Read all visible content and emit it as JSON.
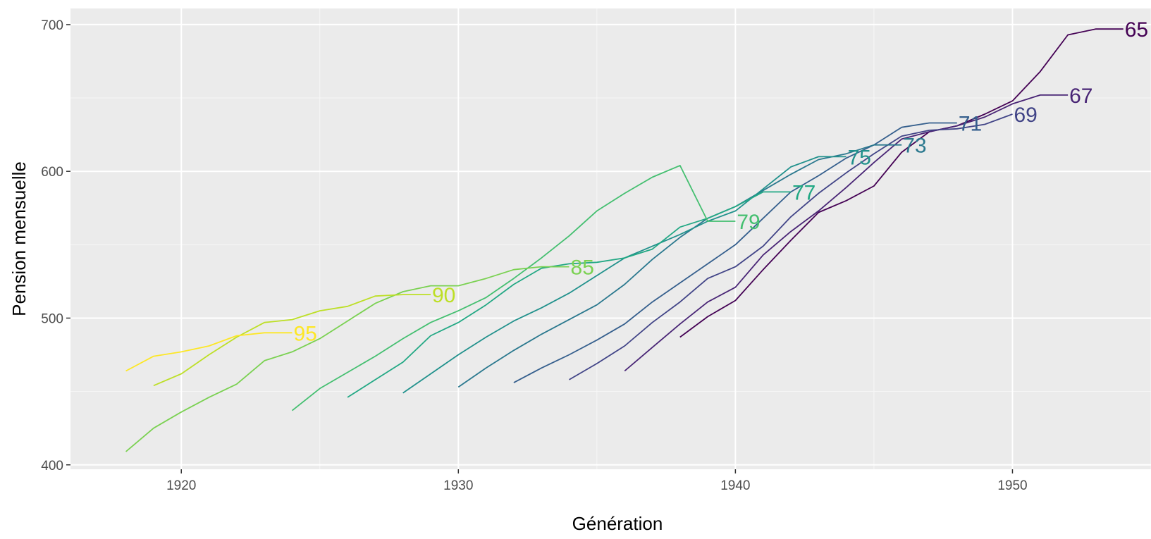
{
  "chart_data": {
    "type": "line",
    "title": "",
    "xlabel": "Génération",
    "ylabel": "Pension mensuelle",
    "xlim": [
      1916,
      1955
    ],
    "ylim": [
      397,
      711
    ],
    "x_ticks": [
      1920,
      1930,
      1940,
      1950
    ],
    "y_ticks": [
      400,
      500,
      600,
      700
    ],
    "grid": true,
    "legend": "none",
    "series": [
      {
        "name": "65",
        "color": "#440154",
        "x": [
          1938,
          1939,
          1940,
          1941,
          1942,
          1943,
          1944,
          1945,
          1946,
          1947,
          1948,
          1949,
          1950,
          1951,
          1952,
          1953,
          1954
        ],
        "y": [
          487,
          501,
          512,
          533,
          553,
          572,
          580,
          590,
          613,
          627,
          631,
          639,
          648,
          668,
          693,
          697,
          697
        ]
      },
      {
        "name": "67",
        "color": "#482475",
        "x": [
          1936,
          1937,
          1938,
          1939,
          1940,
          1941,
          1942,
          1943,
          1944,
          1945,
          1946,
          1947,
          1948,
          1949,
          1950,
          1951,
          1952
        ],
        "y": [
          464,
          480,
          496,
          511,
          521,
          543,
          559,
          573,
          589,
          606,
          622,
          627,
          631,
          637,
          646,
          652,
          652
        ]
      },
      {
        "name": "69",
        "color": "#414487",
        "x": [
          1934,
          1935,
          1936,
          1937,
          1938,
          1939,
          1940,
          1941,
          1942,
          1943,
          1944,
          1945,
          1946,
          1947,
          1948,
          1949,
          1950
        ],
        "y": [
          458,
          469,
          481,
          497,
          511,
          527,
          535,
          549,
          569,
          585,
          599,
          612,
          624,
          628,
          629,
          632,
          639
        ]
      },
      {
        "name": "71",
        "color": "#355f8d",
        "x": [
          1932,
          1933,
          1934,
          1935,
          1936,
          1937,
          1938,
          1939,
          1940,
          1941,
          1942,
          1943,
          1944,
          1945,
          1946,
          1947,
          1948
        ],
        "y": [
          456,
          466,
          475,
          485,
          496,
          511,
          524,
          537,
          550,
          568,
          586,
          597,
          609,
          618,
          630,
          633,
          633
        ]
      },
      {
        "name": "73",
        "color": "#2a788e",
        "x": [
          1930,
          1931,
          1932,
          1933,
          1934,
          1935,
          1936,
          1937,
          1938,
          1939,
          1940,
          1941,
          1942,
          1943,
          1944,
          1945,
          1946
        ],
        "y": [
          453,
          466,
          478,
          489,
          499,
          509,
          523,
          540,
          555,
          568,
          576,
          587,
          598,
          608,
          612,
          618,
          618
        ]
      },
      {
        "name": "75",
        "color": "#21918c",
        "x": [
          1928,
          1929,
          1930,
          1931,
          1932,
          1933,
          1934,
          1935,
          1936,
          1937,
          1938,
          1939,
          1940,
          1941,
          1942,
          1943,
          1944
        ],
        "y": [
          449,
          462,
          475,
          487,
          498,
          507,
          517,
          529,
          541,
          549,
          557,
          566,
          573,
          588,
          603,
          610,
          610
        ]
      },
      {
        "name": "77",
        "color": "#22a884",
        "x": [
          1926,
          1927,
          1928,
          1929,
          1930,
          1931,
          1932,
          1933,
          1934,
          1935,
          1936,
          1937,
          1938,
          1939,
          1940,
          1941,
          1942
        ],
        "y": [
          446,
          458,
          470,
          488,
          497,
          509,
          523,
          534,
          537,
          538,
          541,
          547,
          562,
          568,
          576,
          586,
          586
        ]
      },
      {
        "name": "79",
        "color": "#44bf70",
        "x": [
          1924,
          1925,
          1926,
          1927,
          1928,
          1929,
          1930,
          1931,
          1932,
          1933,
          1934,
          1935,
          1936,
          1937,
          1938,
          1939,
          1940
        ],
        "y": [
          437,
          452,
          463,
          474,
          486,
          497,
          505,
          514,
          527,
          541,
          556,
          573,
          585,
          596,
          604,
          566,
          566
        ]
      },
      {
        "name": "85",
        "color": "#7ad151",
        "x": [
          1918,
          1919,
          1920,
          1921,
          1922,
          1923,
          1924,
          1925,
          1926,
          1927,
          1928,
          1929,
          1930,
          1931,
          1932,
          1933,
          1934
        ],
        "y": [
          409,
          425,
          436,
          446,
          455,
          471,
          477,
          486,
          498,
          510,
          518,
          522,
          522,
          527,
          533,
          535,
          535
        ]
      },
      {
        "name": "90",
        "color": "#bddf26",
        "x": [
          1919,
          1920,
          1921,
          1922,
          1923,
          1924,
          1925,
          1926,
          1927,
          1928,
          1929
        ],
        "y": [
          454,
          462,
          475,
          487,
          497,
          499,
          505,
          508,
          515,
          516,
          516
        ]
      },
      {
        "name": "95",
        "color": "#fde725",
        "x": [
          1918,
          1919,
          1920,
          1921,
          1922,
          1923,
          1924
        ],
        "y": [
          464,
          474,
          477,
          481,
          488,
          490,
          490
        ]
      }
    ]
  }
}
